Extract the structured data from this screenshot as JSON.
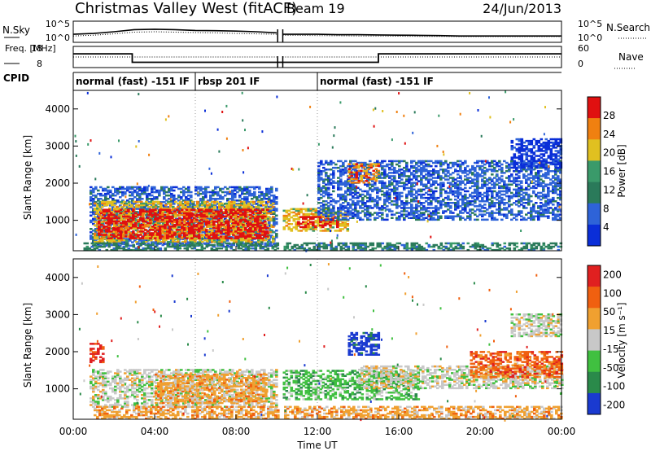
{
  "header": {
    "title": "Christmas Valley West (fitACF)",
    "beam": "Beam 19",
    "date": "24/Jun/2013"
  },
  "chart_data": [
    {
      "type": "line",
      "name": "noise-panel",
      "ylabel_left": "N.Sky",
      "ylabel_right": "N.Search",
      "left_ticks": [
        "10^5",
        "10^0"
      ],
      "right_ticks": [
        "10^5",
        "10^0"
      ],
      "x_hours": [
        0,
        1,
        2,
        3,
        4,
        5,
        6,
        7,
        8,
        9,
        10,
        10.1,
        10.3,
        11,
        12,
        13,
        14,
        15,
        16,
        17,
        18,
        19,
        20,
        21,
        22,
        23,
        24
      ],
      "sky_level": [
        0.38,
        0.42,
        0.5,
        0.6,
        0.62,
        0.6,
        0.56,
        0.55,
        0.53,
        0.5,
        0.45,
        null,
        0.38,
        0.38,
        0.38,
        0.36,
        0.36,
        0.35,
        0.34,
        0.33,
        0.32,
        0.3,
        0.3,
        0.3,
        0.3,
        0.3,
        0.3
      ],
      "search_level": [
        0.3,
        0.34,
        0.4,
        0.48,
        0.5,
        0.48,
        0.46,
        0.45,
        0.42,
        0.4,
        0.38,
        null,
        0.33,
        0.33,
        0.32,
        0.31,
        0.3,
        0.3,
        0.29,
        0.28,
        0.28,
        0.27,
        0.27,
        0.27,
        0.27,
        0.27,
        0.27
      ]
    },
    {
      "type": "line",
      "name": "freq-nave-panel",
      "ylabel_left": "Freq. [MHz]",
      "ylabel_right": "Nave",
      "left_ticks": [
        "18",
        "8"
      ],
      "right_ticks": [
        "60",
        "0"
      ],
      "freq_steps": [
        {
          "from": 0,
          "to": 2.9,
          "mhz": 14.5
        },
        {
          "from": 2.9,
          "to": 10.0,
          "mhz": 10.5
        },
        {
          "from": 10.3,
          "to": 15.0,
          "mhz": 10.5
        },
        {
          "from": 15.0,
          "to": 24,
          "mhz": 14.5
        }
      ],
      "nave_steps": [
        {
          "from": 0,
          "to": 2.9,
          "n": 30
        },
        {
          "from": 2.9,
          "to": 10.0,
          "n": 30
        },
        {
          "from": 10.3,
          "to": 15.0,
          "n": 30
        },
        {
          "from": 15.0,
          "to": 24,
          "n": 30
        }
      ]
    },
    {
      "type": "table",
      "name": "cpid-panel",
      "label": "CPID",
      "segments": [
        {
          "from": 0,
          "to": 6.0,
          "text": "normal (fast) -151 IF"
        },
        {
          "from": 6.0,
          "to": 12.0,
          "text": "rbsp 201 IF"
        },
        {
          "from": 12.0,
          "to": 24,
          "text": "normal (fast) -151 IF"
        }
      ]
    },
    {
      "type": "heatmap",
      "name": "power-panel",
      "ylabel": "Slant Range [km]",
      "ylim": [
        180,
        4500
      ],
      "yticks": [
        "1000",
        "2000",
        "3000",
        "4000"
      ],
      "colorbar_label": "Power [dB]",
      "colorbar_ticks": [
        "4",
        "8",
        "12",
        "16",
        "20",
        "24",
        "28"
      ],
      "colors": [
        "#0a2ed8",
        "#2e63d8",
        "#2a7a5a",
        "#3a9a6a",
        "#e0c020",
        "#f08010",
        "#e01010"
      ],
      "regions": [
        {
          "t0": 0.8,
          "t1": 10.0,
          "r0": 300,
          "r1": 1900,
          "level": 1
        },
        {
          "t0": 1.0,
          "t1": 9.8,
          "r0": 400,
          "r1": 1500,
          "level": 4
        },
        {
          "t0": 1.2,
          "t1": 9.5,
          "r0": 500,
          "r1": 1300,
          "level": 6
        },
        {
          "t0": 10.3,
          "t1": 13.5,
          "r0": 700,
          "r1": 1300,
          "level": 4
        },
        {
          "t0": 11.0,
          "t1": 13.0,
          "r0": 800,
          "r1": 1100,
          "level": 6
        },
        {
          "t0": 12.0,
          "t1": 24,
          "r0": 1000,
          "r1": 2600,
          "level": 1
        },
        {
          "t0": 13.5,
          "t1": 15.0,
          "r0": 2000,
          "r1": 2500,
          "level": 5
        },
        {
          "t0": 21.5,
          "t1": 24,
          "r0": 2400,
          "r1": 3200,
          "level": 0
        },
        {
          "t0": 0.5,
          "t1": 24,
          "r0": 180,
          "r1": 400,
          "level": 2
        }
      ]
    },
    {
      "type": "heatmap",
      "name": "velocity-panel",
      "xlabel": "Time UT",
      "ylabel": "Slant Range [km]",
      "ylim": [
        180,
        4500
      ],
      "yticks": [
        "1000",
        "2000",
        "3000",
        "4000"
      ],
      "xticks": [
        "00:00",
        "04:00",
        "08:00",
        "12:00",
        "16:00",
        "20:00",
        "00:00"
      ],
      "colorbar_label": "Velocity [m s⁻¹]",
      "colorbar_ticks": [
        "200",
        "100",
        "50",
        "15",
        "-15",
        "-50",
        "-100",
        "-200"
      ],
      "colors": [
        "#1a3ad0",
        "#2a8a4a",
        "#40c040",
        "#c8c8c8",
        "#f0a030",
        "#f06010",
        "#e02020"
      ],
      "regions": [
        {
          "t0": 0.8,
          "t1": 10.0,
          "r0": 500,
          "r1": 1500,
          "level": 3
        },
        {
          "t0": 0.8,
          "t1": 1.5,
          "r0": 1700,
          "r1": 2200,
          "level": 6
        },
        {
          "t0": 4.0,
          "t1": 9.5,
          "r0": 600,
          "r1": 1400,
          "level": 4
        },
        {
          "t0": 10.3,
          "t1": 17.0,
          "r0": 700,
          "r1": 1500,
          "level": 2
        },
        {
          "t0": 13.5,
          "t1": 15.0,
          "r0": 1900,
          "r1": 2500,
          "level": 0
        },
        {
          "t0": 14.0,
          "t1": 24,
          "r0": 1000,
          "r1": 1600,
          "level": 3
        },
        {
          "t0": 19.5,
          "t1": 24,
          "r0": 1300,
          "r1": 2000,
          "level": 5
        },
        {
          "t0": 21.5,
          "t1": 24,
          "r0": 2400,
          "r1": 3000,
          "level": 3
        },
        {
          "t0": 1.0,
          "t1": 24,
          "r0": 180,
          "r1": 500,
          "level": 4
        }
      ]
    }
  ]
}
